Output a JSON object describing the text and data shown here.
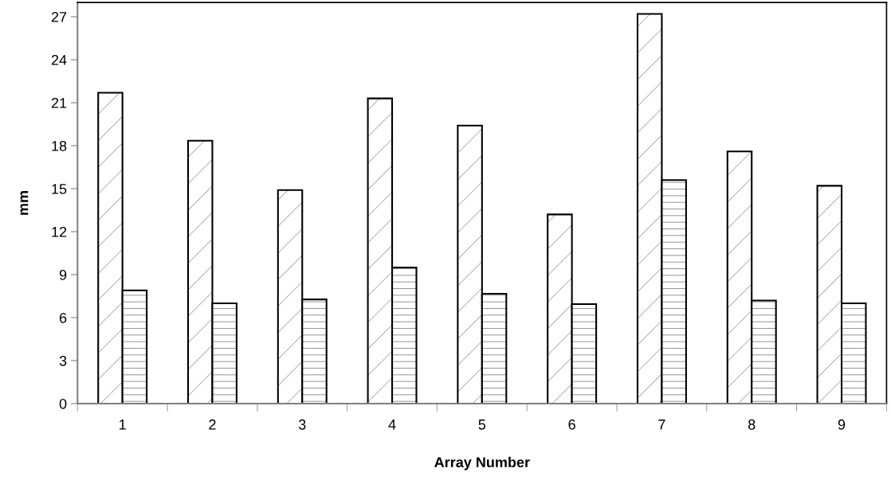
{
  "chart_data": {
    "type": "bar",
    "xlabel": "Array Number",
    "ylabel": "mm",
    "categories": [
      "1",
      "2",
      "3",
      "4",
      "5",
      "6",
      "7",
      "8",
      "9"
    ],
    "series": [
      {
        "values": [
          21.7,
          18.35,
          14.9,
          21.3,
          19.4,
          13.2,
          27.2,
          17.6,
          15.2
        ]
      },
      {
        "values": [
          7.9,
          7.0,
          7.27,
          9.5,
          7.67,
          6.94,
          15.6,
          7.19,
          7.0
        ]
      }
    ],
    "ylim": [
      0,
      28
    ],
    "yticks": [
      0,
      3,
      6,
      9,
      12,
      15,
      18,
      21,
      24,
      27
    ],
    "grid": false,
    "legend": false
  }
}
